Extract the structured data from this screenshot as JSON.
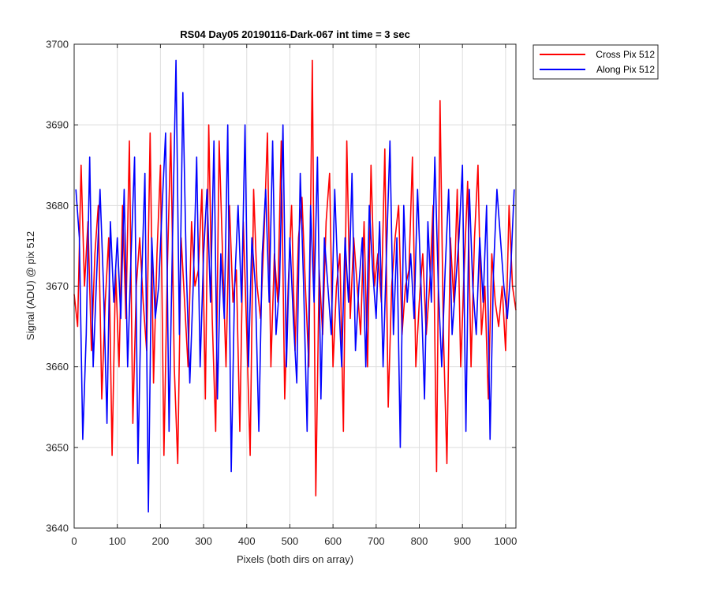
{
  "chart_data": {
    "type": "line",
    "title": "RS04 Day05 20190116-Dark-067 int time = 3 sec",
    "xlabel": "Pixels (both dirs on array)",
    "ylabel": "Signal (ADU) @ pix 512",
    "xlim": [
      0,
      1024
    ],
    "ylim": [
      3640,
      3700
    ],
    "xticks": [
      0,
      100,
      200,
      300,
      400,
      500,
      600,
      700,
      800,
      900,
      1000
    ],
    "yticks": [
      3640,
      3650,
      3660,
      3670,
      3680,
      3690,
      3700
    ],
    "grid": true,
    "legend_position": "outside-top-right",
    "sampling_note_hidden": "",
    "series": [
      {
        "name": "Cross Pix 512",
        "color": "#ff0000",
        "x_start": 0,
        "x_step": 8,
        "values": [
          3669,
          3665,
          3685,
          3670,
          3678,
          3662,
          3674,
          3680,
          3656,
          3668,
          3676,
          3649,
          3672,
          3660,
          3680,
          3666,
          3688,
          3653,
          3670,
          3676,
          3668,
          3662,
          3689,
          3658,
          3674,
          3685,
          3649,
          3672,
          3689,
          3660,
          3648,
          3676,
          3668,
          3660,
          3678,
          3670,
          3672,
          3682,
          3656,
          3690,
          3666,
          3652,
          3688,
          3674,
          3660,
          3680,
          3668,
          3672,
          3652,
          3678,
          3664,
          3649,
          3682,
          3670,
          3666,
          3676,
          3689,
          3660,
          3674,
          3668,
          3688,
          3656,
          3670,
          3680,
          3662,
          3676,
          3681,
          3670,
          3660,
          3698,
          3644,
          3672,
          3664,
          3678,
          3684,
          3660,
          3670,
          3674,
          3652,
          3688,
          3666,
          3676,
          3670,
          3664,
          3678,
          3660,
          3685,
          3670,
          3674,
          3668,
          3687,
          3655,
          3670,
          3676,
          3680,
          3664,
          3670,
          3672,
          3686,
          3660,
          3668,
          3674,
          3664,
          3670,
          3680,
          3647,
          3693,
          3664,
          3648,
          3676,
          3668,
          3682,
          3660,
          3672,
          3683,
          3660,
          3676,
          3685,
          3664,
          3670,
          3656,
          3674,
          3668,
          3665,
          3670,
          3662,
          3680,
          3670,
          3667
        ]
      },
      {
        "name": "Along Pix 512",
        "color": "#0000ff",
        "x_start": 4,
        "x_step": 8,
        "values": [
          3682,
          3676,
          3651,
          3664,
          3686,
          3660,
          3671,
          3682,
          3670,
          3653,
          3678,
          3668,
          3676,
          3666,
          3682,
          3660,
          3674,
          3686,
          3648,
          3670,
          3684,
          3642,
          3676,
          3666,
          3670,
          3680,
          3689,
          3652,
          3676,
          3698,
          3664,
          3694,
          3672,
          3658,
          3670,
          3686,
          3660,
          3674,
          3682,
          3668,
          3688,
          3656,
          3674,
          3666,
          3690,
          3647,
          3670,
          3680,
          3668,
          3690,
          3660,
          3676,
          3670,
          3652,
          3674,
          3682,
          3668,
          3688,
          3664,
          3670,
          3690,
          3660,
          3676,
          3666,
          3658,
          3684,
          3670,
          3652,
          3680,
          3668,
          3686,
          3656,
          3676,
          3670,
          3664,
          3682,
          3670,
          3660,
          3676,
          3668,
          3684,
          3662,
          3670,
          3676,
          3660,
          3680,
          3672,
          3666,
          3678,
          3660,
          3674,
          3688,
          3664,
          3676,
          3650,
          3680,
          3668,
          3674,
          3666,
          3682,
          3670,
          3656,
          3678,
          3668,
          3686,
          3670,
          3660,
          3672,
          3682,
          3664,
          3670,
          3676,
          3685,
          3652,
          3682,
          3670,
          3664,
          3676,
          3668,
          3680,
          3651,
          3672,
          3682,
          3676,
          3670,
          3666,
          3672,
          3682
        ]
      }
    ]
  }
}
